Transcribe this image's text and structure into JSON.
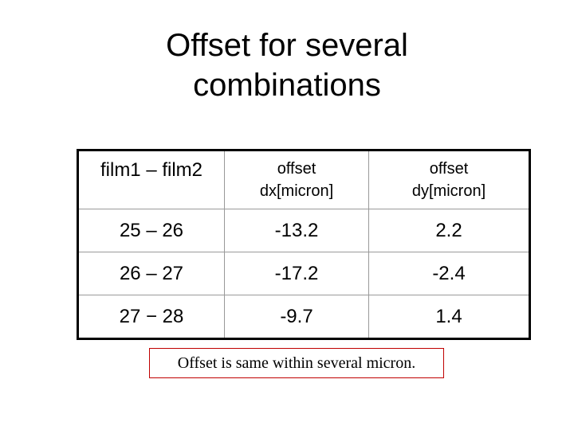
{
  "title": "Offset for several combinations",
  "table": {
    "header": [
      "film1 – film2",
      "offset dx[micron]",
      "offset dy[micron]"
    ],
    "rows": [
      [
        "25 – 26",
        "-13.2",
        "2.2"
      ],
      [
        "26 – 27",
        "-17.2",
        "-2.4"
      ],
      [
        "27 − 28",
        "-9.7",
        "1.4"
      ]
    ]
  },
  "note": "Offset is same within several micron."
}
